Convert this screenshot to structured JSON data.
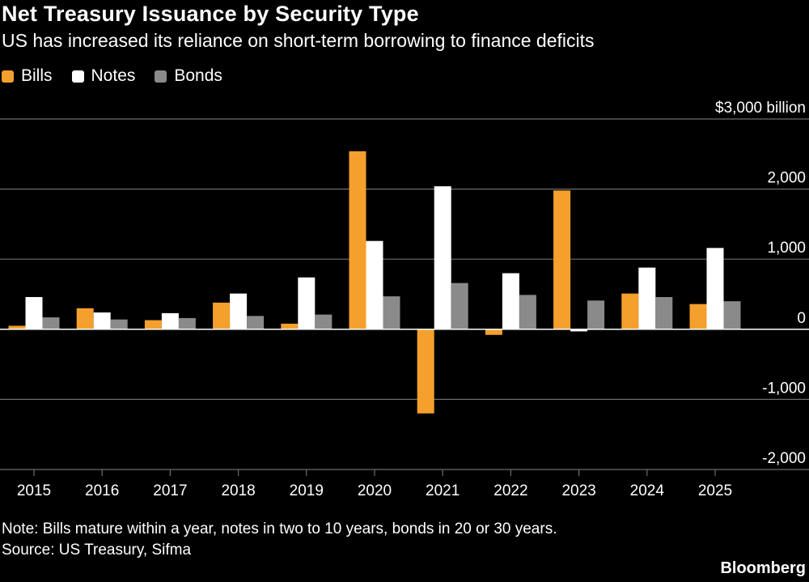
{
  "header": {
    "title": "Net Treasury Issuance by Security Type",
    "subtitle": "US has increased its reliance on short-term borrowing to finance deficits"
  },
  "footer": {
    "note": "Note: Bills mature within a year, notes in two to 10 years, bonds in 20 or 30 years.",
    "source": "Source: US Treasury, Sifma",
    "brand": "Bloomberg"
  },
  "colors": {
    "background": "#000000",
    "bills": "#f5a02c",
    "notes": "#ffffff",
    "bonds": "#8a8a8a",
    "gridline": "#6e6e6e",
    "zeroline": "#ffffff"
  },
  "chart_data": {
    "type": "bar",
    "categories": [
      "2015",
      "2016",
      "2017",
      "2018",
      "2019",
      "2020",
      "2021",
      "2022",
      "2023",
      "2024",
      "2025"
    ],
    "series": [
      {
        "name": "Bills",
        "values": [
          50,
          300,
          130,
          380,
          80,
          2540,
          -1200,
          -80,
          1980,
          510,
          360
        ]
      },
      {
        "name": "Notes",
        "values": [
          460,
          240,
          230,
          510,
          740,
          1260,
          2040,
          800,
          -30,
          880,
          1160
        ]
      },
      {
        "name": "Bonds",
        "values": [
          170,
          140,
          160,
          190,
          210,
          470,
          660,
          490,
          410,
          460,
          400
        ]
      }
    ],
    "ylim": [
      -2000,
      3000
    ],
    "yticks": [
      {
        "value": 3000,
        "label": "$3,000 billion"
      },
      {
        "value": 2000,
        "label": "2,000"
      },
      {
        "value": 1000,
        "label": "1,000"
      },
      {
        "value": 0,
        "label": "0"
      },
      {
        "value": -1000,
        "label": "-1,000"
      },
      {
        "value": -2000,
        "label": "-2,000"
      }
    ],
    "grid": true,
    "legend_position": "top-left",
    "xlabel": "",
    "ylabel": ""
  }
}
